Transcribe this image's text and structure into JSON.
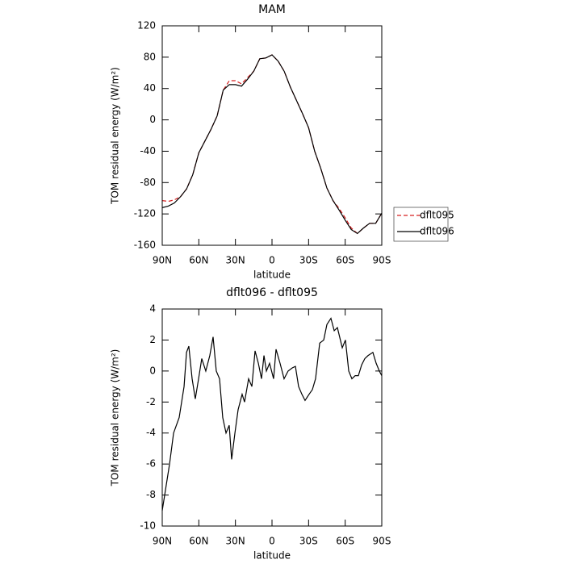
{
  "chart_data": [
    {
      "type": "line",
      "title": "MAM",
      "xlabel": "latitude",
      "ylabel": "TOM residual energy (W/m²)",
      "x": [
        90,
        85,
        80,
        75,
        70,
        65,
        60,
        55,
        50,
        45,
        40,
        35,
        30,
        25,
        20,
        15,
        10,
        5,
        0,
        -5,
        -10,
        -15,
        -20,
        -25,
        -30,
        -35,
        -40,
        -45,
        -50,
        -55,
        -60,
        -65,
        -70,
        -75,
        -80,
        -85,
        -90
      ],
      "series": [
        {
          "name": "dflt095",
          "color": "#d62020",
          "linestyle": "dashed",
          "values": [
            -103,
            -104,
            -102,
            -98,
            -88,
            -70,
            -42,
            -27,
            -12,
            5,
            38,
            50,
            50,
            46,
            54,
            62,
            78,
            79,
            83,
            75,
            62,
            42,
            25,
            8,
            -10,
            -40,
            -62,
            -87,
            -103,
            -113,
            -125,
            -138,
            -145,
            -138,
            -132,
            -132,
            -119
          ]
        },
        {
          "name": "dflt096",
          "color": "#000000",
          "linestyle": "solid",
          "values": [
            -112,
            -110,
            -106,
            -98,
            -88,
            -70,
            -42,
            -27,
            -12,
            5,
            38,
            45,
            45,
            43,
            52,
            62,
            78,
            79,
            83,
            75,
            62,
            42,
            25,
            8,
            -10,
            -40,
            -62,
            -87,
            -103,
            -115,
            -128,
            -140,
            -145,
            -138,
            -132,
            -132,
            -119
          ]
        }
      ],
      "xlim": [
        90,
        -90
      ],
      "xticks": [
        {
          "value": 90,
          "label": "90N"
        },
        {
          "value": 60,
          "label": "60N"
        },
        {
          "value": 30,
          "label": "30N"
        },
        0,
        {
          "value": -30,
          "label": "30S"
        },
        {
          "value": -60,
          "label": "60S"
        },
        {
          "value": -90,
          "label": "90S"
        }
      ],
      "ylim": [
        -160,
        120
      ],
      "yticks": [
        120,
        80,
        40,
        0,
        -40,
        -80,
        -120,
        -160
      ],
      "legend": "outside right"
    },
    {
      "type": "line",
      "title": "dflt096 - dflt095",
      "xlabel": "latitude",
      "ylabel": "TOM residual energy (W/m²)",
      "x": [
        90,
        84,
        80.7,
        76.1,
        72.1,
        70.1,
        68.2,
        65.5,
        62.9,
        60.2,
        57.6,
        54.3,
        51,
        48.3,
        45.7,
        43,
        40.4,
        37.7,
        35.1,
        33.1,
        30.4,
        27.8,
        24.5,
        22.5,
        19.2,
        16.5,
        13.9,
        11.2,
        8.6,
        6.6,
        4.6,
        2,
        -1.3,
        -3.3,
        -6.6,
        -9.9,
        -13.2,
        -16.6,
        -19.2,
        -21.8,
        -24.5,
        -27.1,
        -30.4,
        -33.1,
        -35.7,
        -39.1,
        -42.4,
        -45,
        -48.3,
        -51,
        -53.6,
        -57.6,
        -60.2,
        -62.9,
        -65.5,
        -68.2,
        -70.8,
        -73.5,
        -76.1,
        -78.8,
        -82.7,
        -85.4,
        -88,
        -90
      ],
      "color": "#000000",
      "values": [
        -9,
        -6,
        -4,
        -3,
        -1,
        1.2,
        1.6,
        -0.5,
        -1.8,
        -0.5,
        0.8,
        0,
        1,
        2.2,
        0,
        -0.5,
        -3,
        -4,
        -3.5,
        -5.7,
        -4,
        -2.5,
        -1.5,
        -2,
        -0.5,
        -1,
        1.3,
        0.5,
        -0.5,
        1,
        0,
        0.5,
        -0.5,
        1.4,
        0.5,
        -0.5,
        0,
        0.2,
        0.3,
        -1,
        -1.5,
        -1.9,
        -1.5,
        -1.2,
        -0.5,
        1.8,
        2,
        3,
        3.4,
        2.6,
        2.8,
        1.5,
        2,
        0,
        -0.5,
        -0.3,
        -0.3,
        0.4,
        0.8,
        1,
        1.2,
        0.5,
        0,
        -0.3
      ],
      "xlim": [
        90,
        -90
      ],
      "xticks": [
        {
          "value": 90,
          "label": "90N"
        },
        {
          "value": 60,
          "label": "60N"
        },
        {
          "value": 30,
          "label": "30N"
        },
        0,
        {
          "value": -30,
          "label": "30S"
        },
        {
          "value": -60,
          "label": "60S"
        },
        {
          "value": -90,
          "label": "90S"
        }
      ],
      "ylim": [
        -10,
        4
      ],
      "yticks": [
        4,
        2,
        0,
        -2,
        -4,
        -6,
        -8,
        -10
      ]
    }
  ]
}
